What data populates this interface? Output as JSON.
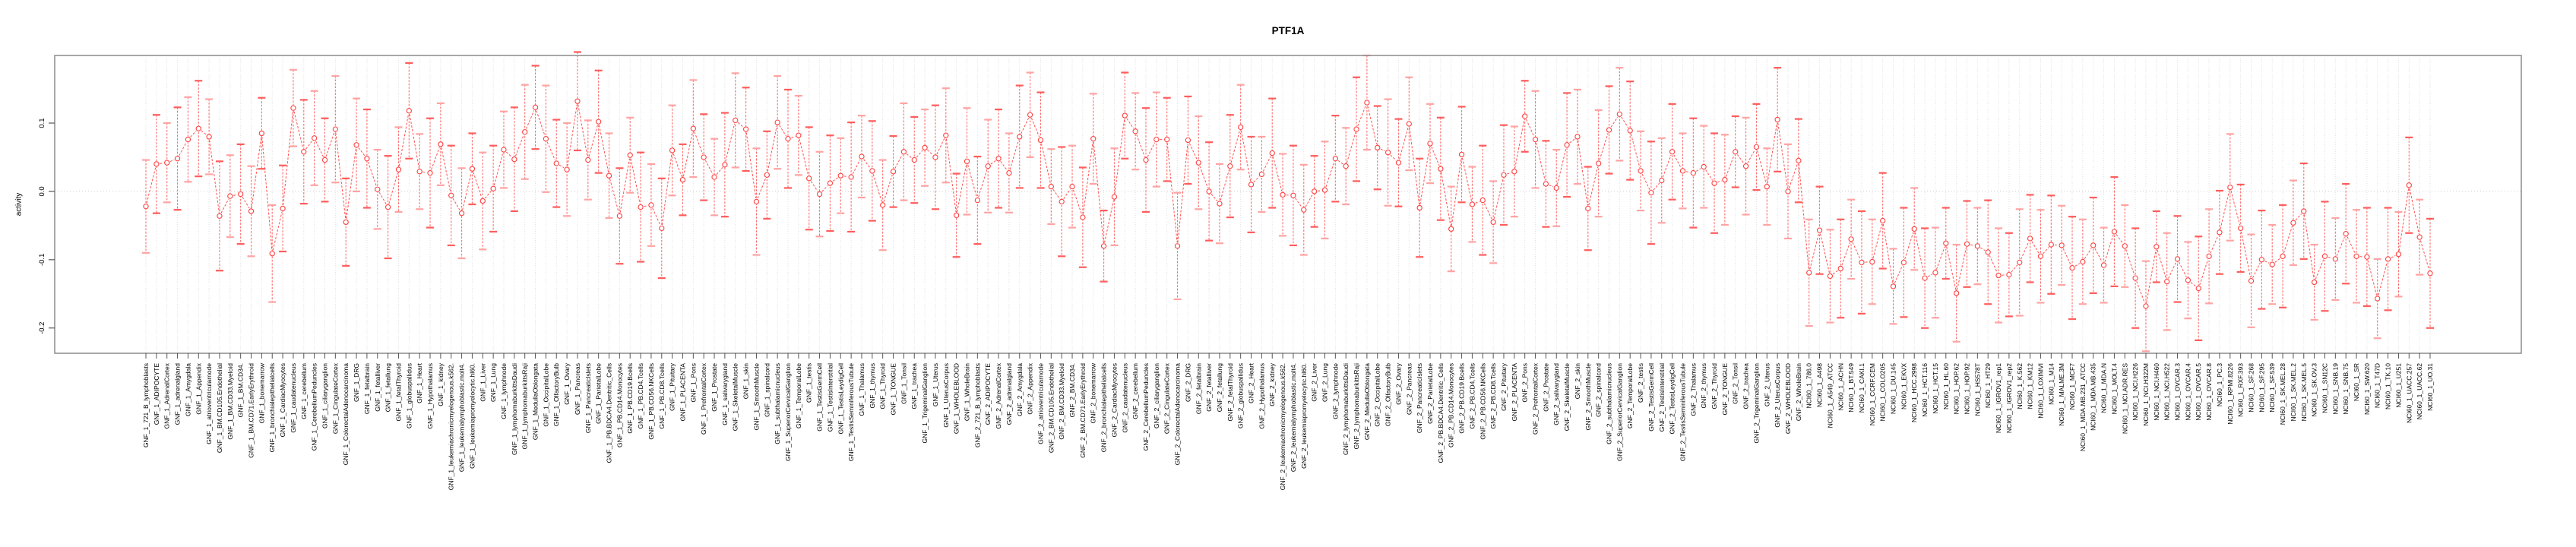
{
  "header": {
    "title": "PTF1A"
  },
  "axes": {
    "y_label": "activity"
  },
  "colors": {
    "series_red": "#ff5252",
    "marker_stroke": "#ff4040",
    "errorbar_stem": "#ff6b6b",
    "errorbar_cap_light": "#ffa3a3",
    "errorbar_cap_dark": "#ff5c5c",
    "grid": "#dedede",
    "zero_line": "#cfcfcf",
    "frame": "#8c8c8c"
  },
  "chart_data": {
    "type": "scatter",
    "subtype": "points-with-error-bars-and-connecting-lines",
    "title": "PTF1A",
    "xlabel": "",
    "ylabel": "activity",
    "ylim": [
      -0.237,
      0.199
    ],
    "grid": "vertical-dotted-per-category",
    "zero_reference_line": true,
    "legend": "none",
    "y_ticks": [
      {
        "label": "0.1",
        "value": 0.1
      },
      {
        "label": "0.0",
        "value": 0.0
      },
      {
        "label": "-0.1",
        "value": -0.1
      },
      {
        "label": "-0.2",
        "value": -0.2
      }
    ],
    "categories": [
      "GNF_1_721_B_lymphoblasts",
      "GNF_1_ADIPOCYTE",
      "GNF_1_AdrenalCortex",
      "GNF_1_adrenalgland",
      "GNF_1_Amygdala",
      "GNF_1_Appendix",
      "GNF_1_atrioventricularnode",
      "GNF_1_BM.CD105.Endothelial",
      "GNF_1_BM.CD33.Myeloid",
      "GNF_1_BM.CD34.",
      "GNF_1_BM.CD71.EarlyErythroid",
      "GNF_1_bonemarrow",
      "GNF_1_bronchialepithelialcells",
      "GNF_1_CardiacMyocytes",
      "GNF_1_caudatenucleus",
      "GNF_1_cerebellum",
      "GNF_1_CerebellumPeduncles",
      "GNF_1_ciliaryganglion",
      "GNF_1_CingulateCortex",
      "GNF_1_ColorectalAdenocarcinoma",
      "GNF_1_DRG",
      "GNF_1_fetalbrain",
      "GNF_1_fetalliver",
      "GNF_1_fetallung",
      "GNF_1_fetalThyroid",
      "GNF_1_globuspallidus",
      "GNF_1_Heart",
      "GNF_1_Hypothalamus",
      "GNF_1_kidney",
      "GNF_1_leukemiachronicmyelogenous.k562.",
      "GNF_1_leukemialymphoblastic.molt4.",
      "GNF_1_leukemiapromyelocytic.hl60.",
      "GNF_1_Liver",
      "GNF_1_Lung",
      "GNF_1_lymphnode",
      "GNF_1_lymphomaburkittsDaudi",
      "GNF_1_lymphomaburkittsRaji",
      "GNF_1_MedullaOblongata",
      "GNF_1_OccipitalLobe",
      "GNF_1_OlfactoryBulb",
      "GNF_1_Ovary",
      "GNF_1_Pancreas",
      "GNF_1_PancreaticIslets",
      "GNF_1_ParietalLobe",
      "GNF_1_PB.BDCA4.Dentritic_Cells",
      "GNF_1_PB.CD14.Monocytes",
      "GNF_1_PB.CD19.Bcells",
      "GNF_1_PB.CD4.Tcells",
      "GNF_1_PB.CD56.NKCells",
      "GNF_1_PB.CD8.Tcells",
      "GNF_1_Pituitary",
      "GNF_1_PLACENTA",
      "GNF_1_Pons",
      "GNF_1_PrefrontalCortex",
      "GNF_1_Prostate",
      "GNF_1_salivarygland",
      "GNF_1_SkeletalMuscle",
      "GNF_1_skin",
      "GNF_1_SmoothMuscle",
      "GNF_1_spinalcord",
      "GNF_1_subthalamicnucleus",
      "GNF_1_SuperiorCervicalGanglion",
      "GNF_1_TemporalLobe",
      "GNF_1_testis",
      "GNF_1_TestisGermCell",
      "GNF_1_TestisInterstitial",
      "GNF_1_TestisLeydigCell",
      "GNF_1_TestisSeminiferousTubule",
      "GNF_1_Thalamus",
      "GNF_1_thymus",
      "GNF_1_Thyroid",
      "GNF_1_TONGUE",
      "GNF_1_Tonsil",
      "GNF_1_trachea",
      "GNF_1_TrigeminalGanglion",
      "GNF_1_Uterus",
      "GNF_1_UterusCorpus",
      "GNF_1_WHOLEBLOOD",
      "GNF_1_WholeBrain",
      "GNF_2_721_B_lymphoblasts",
      "GNF_2_ADIPOCYTE",
      "GNF_2_AdrenalCortex",
      "GNF_2_adrenalgland",
      "GNF_2_Amygdala",
      "GNF_2_Appendix",
      "GNF_2_atrioventricularnode",
      "GNF_2_BM.CD105.Endothelial",
      "GNF_2_BM.CD33.Myeloid",
      "GNF_2_BM.CD34.",
      "GNF_2_BM.CD71.EarlyErythroid",
      "GNF_2_bonemarrow",
      "GNF_2_bronchialepithelialcells",
      "GNF_2_CardiacMyocytes",
      "GNF_2_caudatenucleus",
      "GNF_2_cerebellum",
      "GNF_2_CerebellumPeduncles",
      "GNF_2_ciliaryganglion",
      "GNF_2_CingulateCortex",
      "GNF_2_ColorectalAdenocarcinoma",
      "GNF_2_DRG",
      "GNF_2_fetalbrain",
      "GNF_2_fetalliver",
      "GNF_2_fetallung",
      "GNF_2_fetalThyroid",
      "GNF_2_globuspallidus",
      "GNF_2_Heart",
      "GNF_2_Hypothalamus",
      "GNF_2_kidney",
      "GNF_2_leukemiachronicmyelogenous.k562.",
      "GNF_2_leukemialymphoblastic.molt4.",
      "GNF_2_leukemiapromyelocytic.hl60.",
      "GNF_2_Liver",
      "GNF_2_Lung",
      "GNF_2_lymphnode",
      "GNF_2_lymphomaburkittsDaudi",
      "GNF_2_lymphomaburkittsRaji",
      "GNF_2_MedullaOblongata",
      "GNF_2_OccipitalLobe",
      "GNF_2_OlfactoryBulb",
      "GNF_2_Ovary",
      "GNF_2_Pancreas",
      "GNF_2_PancreaticIslets",
      "GNF_2_ParietalLobe",
      "GNF_2_PB.BDCA4.Dentritic_Cells",
      "GNF_2_PB.CD14.Monocytes",
      "GNF_2_PB.CD19.Bcells",
      "GNF_2_PB.CD4.Tcells",
      "GNF_2_PB.CD56.NKCells",
      "GNF_2_PB.CD8.Tcells",
      "GNF_2_Pituitary",
      "GNF_2_PLACENTA",
      "GNF_2_Pons",
      "GNF_2_PrefrontalCortex",
      "GNF_2_Prostate",
      "GNF_2_salivarygland",
      "GNF_2_SkeletalMuscle",
      "GNF_2_skin",
      "GNF_2_SmoothMuscle",
      "GNF_2_spinalcord",
      "GNF_2_subthalamicnucleus",
      "GNF_2_SuperiorCervicalGanglion",
      "GNF_2_TemporalLobe",
      "GNF_2_testis",
      "GNF_2_TestisGermCell",
      "GNF_2_TestisInterstitial",
      "GNF_2_TestisLeydigCell",
      "GNF_2_TestisSeminiferousTubule",
      "GNF_2_Thalamus",
      "GNF_2_thymus",
      "GNF_2_Thyroid",
      "GNF_2_TONGUE",
      "GNF_2_Tonsil",
      "GNF_2_trachea",
      "GNF_2_TrigeminalGanglion",
      "GNF_2_Uterus",
      "GNF_2_UterusCorpus",
      "GNF_2_WHOLEBLOOD",
      "GNF_2_WholeBrain",
      "NCI60_1_786.0",
      "NCI60_1_A498",
      "NCI60_1_A549_ATCC",
      "NCI60_1_ACHN",
      "NCI60_1_BT.549",
      "NCI60_1_CAKI.1",
      "NCI60_1_CCRF.CEM",
      "NCI60_1_COLO205",
      "NCI60_1_DU.145",
      "NCI60_1_EKVX",
      "NCI60_1_HCC.2998",
      "NCI60_1_HCT.116",
      "NCI60_1_HCT.15",
      "NCI60_1_HL.60",
      "NCI60_1_HOP.62",
      "NCI60_1_HOP.92",
      "NCI60_1_HS578T",
      "NCI60_1_HT29",
      "NCI60_1_IGROV1_rep1",
      "NCI60_1_IGROV1_rep2",
      "NCI60_1_K.562",
      "NCI60_1_KM12",
      "NCI60_1_LOXIMVI",
      "NCI60_1_M14",
      "NCI60_1_MALME.3M",
      "NCI60_1_MCF7",
      "NCI60_1_MDA.MB.231_ATCC",
      "NCI60_1_MDA.MB.435",
      "NCI60_1_MDA.N",
      "NCI60_1_MOLT.4",
      "NCI60_1_NCI.ADR.RES",
      "NCI60_1_NCI.H226",
      "NCI60_1_NCI.H322M",
      "NCI60_1_NCI.H460",
      "NCI60_1_NCI.H522",
      "NCI60_1_OVCAR.3",
      "NCI60_1_OVCAR.4",
      "NCI60_1_OVCAR.5",
      "NCI60_1_OVCAR.8",
      "NCI60_1_PC.3",
      "NCI60_1_RPMI.8226",
      "NCI60_1_RXF.393",
      "NCI60_1_SF.268",
      "NCI60_1_SF.295",
      "NCI60_1_SF.539",
      "NCI60_1_SK.MEL.28",
      "NCI60_1_SK.MEL.2",
      "NCI60_1_SK.MEL.5",
      "NCI60_1_SK.OV.3",
      "NCI60_1_SN12C",
      "NCI60_1_SNB.19",
      "NCI60_1_SNB.75",
      "NCI60_1_SR",
      "NCI60_1_SW.620",
      "NCI60_1_T47D",
      "NCI60_1_TK.10",
      "NCI60_1_U251",
      "NCI60_1_UACC.257",
      "NCI60_1_UACC.62",
      "NCI60_1_UO.31"
    ],
    "values": [
      -0.022,
      0.04,
      0.042,
      0.048,
      0.076,
      0.092,
      0.08,
      -0.036,
      -0.007,
      -0.004,
      -0.029,
      0.085,
      -0.091,
      -0.025,
      0.122,
      0.058,
      0.078,
      0.046,
      0.091,
      -0.045,
      0.068,
      0.048,
      0.003,
      -0.023,
      0.032,
      0.118,
      0.029,
      0.027,
      0.069,
      -0.006,
      -0.032,
      0.033,
      -0.014,
      0.004,
      0.061,
      0.047,
      0.087,
      0.123,
      0.077,
      0.041,
      0.032,
      0.132,
      0.046,
      0.102,
      0.023,
      -0.036,
      0.053,
      -0.023,
      -0.02,
      -0.054,
      0.06,
      0.017,
      0.092,
      0.05,
      0.021,
      0.039,
      0.104,
      0.091,
      -0.015,
      0.024,
      0.101,
      0.077,
      0.082,
      0.019,
      -0.004,
      0.012,
      0.023,
      0.021,
      0.051,
      0.03,
      -0.02,
      0.029,
      0.058,
      0.046,
      0.064,
      0.05,
      0.082,
      -0.035,
      0.044,
      -0.013,
      0.037,
      0.048,
      0.027,
      0.08,
      0.112,
      0.075,
      0.007,
      -0.015,
      0.007,
      -0.038,
      0.077,
      -0.08,
      -0.008,
      0.111,
      0.088,
      0.046,
      0.076,
      0.076,
      -0.08,
      0.075,
      0.042,
      0.0,
      -0.018,
      0.037,
      0.094,
      0.01,
      0.025,
      0.056,
      -0.005,
      -0.006,
      -0.027,
      0.0,
      0.002,
      0.048,
      0.037,
      0.091,
      0.13,
      0.064,
      0.057,
      0.042,
      0.099,
      -0.024,
      0.07,
      0.033,
      -0.055,
      0.054,
      -0.019,
      -0.013,
      -0.045,
      0.024,
      0.029,
      0.11,
      0.076,
      0.011,
      0.005,
      0.068,
      0.08,
      -0.025,
      0.041,
      0.09,
      0.113,
      0.089,
      0.03,
      -0.002,
      0.016,
      0.058,
      0.03,
      0.027,
      0.036,
      0.012,
      0.017,
      0.058,
      0.037,
      0.065,
      0.007,
      0.105,
      0.0,
      0.045,
      -0.119,
      -0.057,
      -0.124,
      -0.113,
      -0.07,
      -0.104,
      -0.103,
      -0.043,
      -0.139,
      -0.104,
      -0.055,
      -0.127,
      -0.119,
      -0.076,
      -0.149,
      -0.077,
      -0.08,
      -0.089,
      -0.123,
      -0.122,
      -0.104,
      -0.069,
      -0.095,
      -0.078,
      -0.079,
      -0.112,
      -0.103,
      -0.079,
      -0.108,
      -0.059,
      -0.08,
      -0.127,
      -0.168,
      -0.081,
      -0.132,
      -0.099,
      -0.13,
      -0.142,
      -0.095,
      -0.06,
      0.006,
      -0.054,
      -0.131,
      -0.1,
      -0.107,
      -0.095,
      -0.046,
      -0.029,
      -0.133,
      -0.095,
      -0.099,
      -0.062,
      -0.095,
      -0.096,
      -0.157,
      -0.099,
      -0.092,
      0.009,
      -0.067,
      -0.12
    ],
    "errors": [
      0.068,
      0.072,
      0.058,
      0.075,
      0.062,
      0.07,
      0.055,
      0.08,
      0.06,
      0.073,
      0.066,
      0.052,
      0.071,
      0.063,
      0.056,
      0.076,
      0.069,
      0.061,
      0.078,
      0.064,
      0.068,
      0.072,
      0.058,
      0.075,
      0.062,
      0.07,
      0.055,
      0.08,
      0.06,
      0.073,
      0.066,
      0.052,
      0.071,
      0.063,
      0.056,
      0.076,
      0.069,
      0.061,
      0.078,
      0.064,
      0.068,
      0.072,
      0.058,
      0.075,
      0.062,
      0.07,
      0.055,
      0.08,
      0.06,
      0.073,
      0.066,
      0.052,
      0.071,
      0.063,
      0.056,
      0.076,
      0.069,
      0.061,
      0.078,
      0.064,
      0.068,
      0.072,
      0.058,
      0.075,
      0.062,
      0.07,
      0.055,
      0.08,
      0.06,
      0.073,
      0.066,
      0.052,
      0.071,
      0.063,
      0.056,
      0.076,
      0.069,
      0.061,
      0.078,
      0.064,
      0.068,
      0.072,
      0.058,
      0.075,
      0.062,
      0.07,
      0.055,
      0.08,
      0.06,
      0.073,
      0.066,
      0.052,
      0.071,
      0.063,
      0.056,
      0.076,
      0.069,
      0.061,
      0.078,
      0.064,
      0.068,
      0.072,
      0.058,
      0.075,
      0.062,
      0.07,
      0.055,
      0.08,
      0.06,
      0.073,
      0.066,
      0.052,
      0.071,
      0.063,
      0.056,
      0.076,
      0.069,
      0.061,
      0.078,
      0.064,
      0.068,
      0.072,
      0.058,
      0.075,
      0.062,
      0.07,
      0.055,
      0.08,
      0.06,
      0.073,
      0.066,
      0.052,
      0.071,
      0.063,
      0.056,
      0.076,
      0.069,
      0.061,
      0.078,
      0.064,
      0.068,
      0.072,
      0.058,
      0.075,
      0.062,
      0.07,
      0.055,
      0.08,
      0.06,
      0.073,
      0.066,
      0.052,
      0.071,
      0.063,
      0.056,
      0.076,
      0.069,
      0.061,
      0.078,
      0.064,
      0.068,
      0.072,
      0.058,
      0.075,
      0.062,
      0.07,
      0.055,
      0.08,
      0.06,
      0.073,
      0.066,
      0.052,
      0.071,
      0.063,
      0.056,
      0.076,
      0.069,
      0.061,
      0.078,
      0.064,
      0.068,
      0.072,
      0.058,
      0.075,
      0.062,
      0.07,
      0.055,
      0.08,
      0.06,
      0.073,
      0.066,
      0.052,
      0.071,
      0.063,
      0.056,
      0.076,
      0.069,
      0.061,
      0.078,
      0.064,
      0.068,
      0.072,
      0.058,
      0.075,
      0.062,
      0.07,
      0.055,
      0.08,
      0.06,
      0.073,
      0.068,
      0.072,
      0.058,
      0.075,
      0.062,
      0.07,
      0.055,
      0.08
    ]
  }
}
